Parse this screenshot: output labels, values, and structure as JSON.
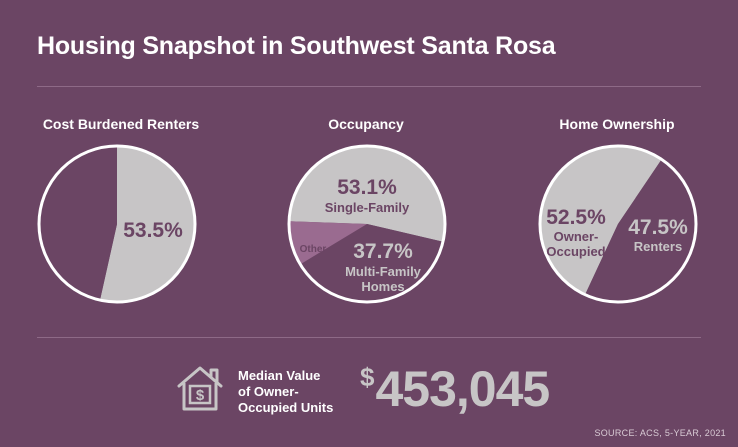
{
  "title": "Housing Snapshot in Southwest Santa Rosa",
  "source": "SOURCE: ACS, 5-YEAR, 2021",
  "colors": {
    "background": "#6b4564",
    "slice_light": "#c7c5c6",
    "slice_mid": "#9a6b90",
    "text_dark": "#6b4564",
    "outline": "#ffffff"
  },
  "median": {
    "label_line1": "Median Value",
    "label_line2": "of Owner-",
    "label_line3": "Occupied Units",
    "dollar": "$",
    "value": "453,045",
    "icon": "house-dollar-icon"
  },
  "chart_data": [
    {
      "type": "pie",
      "title": "Cost Burdened Renters",
      "slices": [
        {
          "name": "Cost Burdened",
          "value": 53.5,
          "label": "53.5%"
        },
        {
          "name": "",
          "value": 46.5,
          "label": ""
        }
      ]
    },
    {
      "type": "pie",
      "title": "Occupancy",
      "slices": [
        {
          "name": "Single-Family",
          "value": 53.1,
          "label": "53.1%"
        },
        {
          "name": "Multi-Family Homes",
          "value": 37.7,
          "label": "37.7%"
        },
        {
          "name": "Other",
          "value": 9.2,
          "label": ""
        }
      ],
      "labels": {
        "single_pct": "53.1%",
        "single_name": "Single-Family",
        "multi_pct": "37.7%",
        "multi_name_1": "Multi-Family",
        "multi_name_2": "Homes",
        "other_name": "Other"
      }
    },
    {
      "type": "pie",
      "title": "Home Ownership",
      "slices": [
        {
          "name": "Owner-Occupied",
          "value": 52.5,
          "label": "52.5%"
        },
        {
          "name": "Renters",
          "value": 47.5,
          "label": "47.5%"
        }
      ],
      "labels": {
        "owner_pct": "52.5%",
        "owner_name_1": "Owner-",
        "owner_name_2": "Occupied",
        "renter_pct": "47.5%",
        "renter_name": "Renters"
      }
    }
  ]
}
